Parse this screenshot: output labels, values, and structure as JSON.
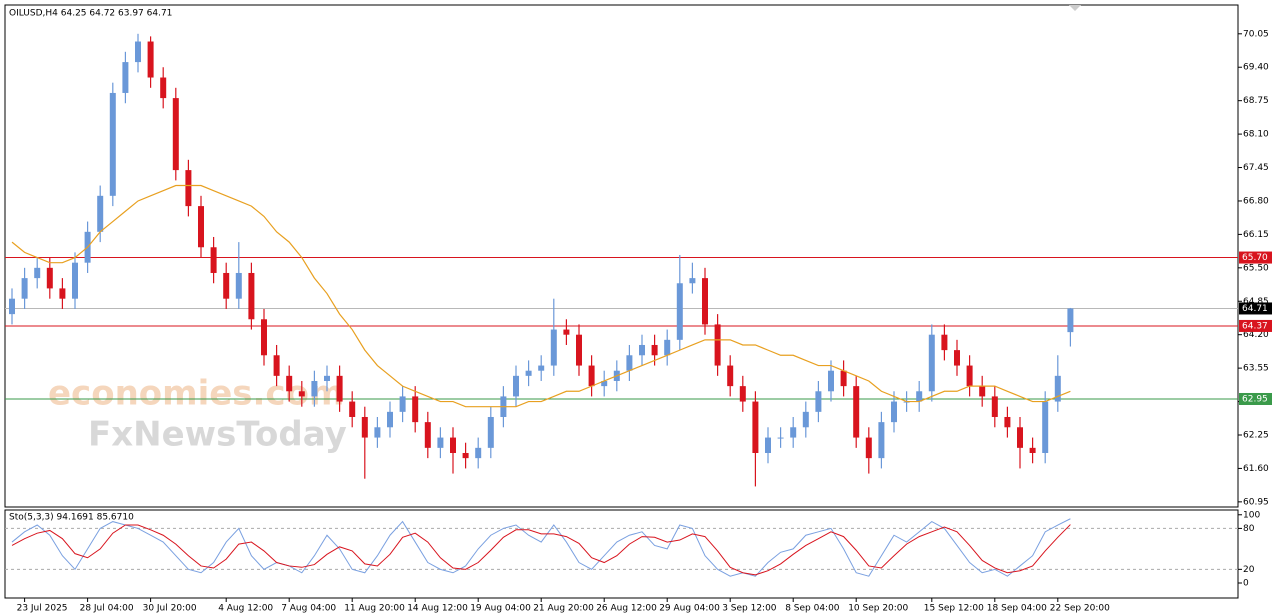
{
  "chart_data": [
    {
      "type": "candlestick",
      "title": "OILUSD,H4  64.25 64.72 63.97 64.71",
      "categories": [
        null,
        "23 Jul 2025",
        null,
        null,
        null,
        null,
        "28 Jul 04:00",
        null,
        null,
        null,
        null,
        "30 Jul 20:00",
        null,
        null,
        null,
        null,
        null,
        "4 Aug 12:00",
        null,
        null,
        null,
        null,
        "7 Aug 04:00",
        null,
        null,
        null,
        null,
        "11 Aug 20:00",
        null,
        null,
        null,
        null,
        "14 Aug 12:00",
        null,
        null,
        null,
        null,
        "19 Aug 04:00",
        null,
        null,
        null,
        null,
        "21 Aug 20:00",
        null,
        null,
        null,
        null,
        "26 Aug 12:00",
        null,
        null,
        null,
        null,
        "29 Aug 04:00",
        null,
        null,
        null,
        null,
        "3 Sep 12:00",
        null,
        null,
        null,
        null,
        "8 Sep 04:00",
        null,
        null,
        null,
        null,
        "10 Sep 20:00",
        null,
        null,
        null,
        null,
        null,
        "15 Sep 12:00",
        null,
        null,
        null,
        null,
        "18 Sep 04:00",
        null,
        null,
        null,
        null,
        "22 Sep 20:00",
        null
      ],
      "open": [
        64.6,
        64.9,
        65.3,
        65.5,
        65.1,
        64.9,
        65.6,
        66.2,
        66.9,
        68.9,
        69.5,
        69.9,
        69.2,
        68.8,
        67.4,
        66.7,
        65.9,
        65.4,
        64.9,
        65.4,
        64.5,
        63.8,
        63.4,
        63.1,
        63.0,
        63.3,
        63.4,
        62.9,
        62.6,
        62.2,
        62.4,
        62.7,
        63.0,
        62.5,
        62.0,
        62.2,
        61.9,
        61.8,
        62.0,
        62.6,
        63.0,
        63.4,
        63.5,
        63.6,
        64.3,
        64.2,
        63.6,
        63.2,
        63.3,
        63.5,
        63.8,
        64.0,
        63.8,
        64.1,
        65.2,
        65.3,
        64.4,
        63.6,
        63.2,
        62.9,
        61.9,
        62.2,
        62.2,
        62.4,
        62.7,
        63.1,
        63.5,
        63.2,
        62.2,
        61.8,
        62.5,
        62.9,
        62.9,
        63.1,
        64.2,
        63.9,
        63.6,
        63.2,
        63.0,
        62.6,
        62.4,
        62.0,
        61.9,
        62.9,
        64.25
      ],
      "high": [
        65.1,
        65.5,
        65.7,
        65.7,
        65.3,
        65.8,
        66.4,
        67.1,
        69.1,
        69.7,
        70.05,
        70.0,
        69.4,
        69.0,
        67.6,
        66.9,
        66.1,
        65.6,
        66.0,
        65.6,
        64.7,
        64.0,
        63.6,
        63.3,
        63.5,
        63.6,
        63.6,
        63.1,
        62.8,
        62.6,
        62.9,
        63.2,
        63.2,
        62.7,
        62.4,
        62.4,
        62.1,
        62.2,
        62.8,
        63.2,
        63.6,
        63.7,
        63.8,
        64.9,
        64.5,
        64.4,
        63.8,
        63.5,
        63.7,
        64.0,
        64.2,
        64.2,
        64.3,
        65.75,
        65.6,
        65.5,
        64.6,
        63.8,
        63.4,
        63.1,
        62.4,
        62.4,
        62.6,
        62.9,
        63.3,
        63.7,
        63.7,
        63.4,
        62.4,
        62.7,
        63.1,
        63.1,
        63.3,
        64.4,
        64.4,
        64.1,
        63.8,
        63.4,
        63.2,
        62.8,
        62.6,
        62.2,
        63.1,
        63.8,
        64.72
      ],
      "low": [
        64.4,
        64.7,
        65.1,
        64.9,
        64.7,
        64.7,
        65.4,
        66.0,
        66.7,
        68.7,
        69.3,
        69.0,
        68.6,
        67.2,
        66.5,
        65.7,
        65.2,
        64.7,
        64.7,
        64.3,
        63.6,
        63.2,
        62.9,
        62.8,
        62.8,
        63.1,
        62.7,
        62.4,
        61.4,
        62.0,
        62.2,
        62.5,
        62.3,
        61.8,
        61.8,
        61.5,
        61.6,
        61.6,
        61.8,
        62.4,
        62.8,
        63.2,
        63.3,
        63.4,
        64.0,
        63.4,
        63.0,
        63.0,
        63.1,
        63.3,
        63.6,
        63.6,
        63.6,
        63.9,
        65.0,
        64.2,
        63.4,
        63.0,
        62.7,
        61.25,
        61.7,
        62.0,
        62.0,
        62.2,
        62.5,
        62.9,
        63.0,
        62.0,
        61.5,
        61.6,
        62.3,
        62.7,
        62.7,
        62.9,
        63.7,
        63.4,
        63.0,
        62.8,
        62.4,
        62.2,
        61.6,
        61.7,
        61.7,
        62.7,
        63.97
      ],
      "close": [
        64.9,
        65.3,
        65.5,
        65.1,
        64.9,
        65.6,
        66.2,
        66.9,
        68.9,
        69.5,
        69.9,
        69.2,
        68.8,
        67.4,
        66.7,
        65.9,
        65.4,
        64.9,
        65.4,
        64.5,
        63.8,
        63.4,
        63.1,
        63.0,
        63.3,
        63.4,
        62.9,
        62.6,
        62.2,
        62.4,
        62.7,
        63.0,
        62.5,
        62.0,
        62.2,
        61.9,
        61.8,
        62.0,
        62.6,
        63.0,
        63.4,
        63.5,
        63.6,
        64.3,
        64.2,
        63.6,
        63.2,
        63.3,
        63.5,
        63.8,
        64.0,
        63.8,
        64.1,
        65.2,
        65.3,
        64.4,
        63.6,
        63.2,
        62.9,
        61.9,
        62.2,
        62.2,
        62.4,
        62.7,
        63.1,
        63.5,
        63.2,
        62.2,
        61.8,
        62.5,
        62.9,
        62.9,
        63.1,
        64.2,
        63.9,
        63.6,
        63.2,
        63.0,
        62.6,
        62.4,
        62.0,
        61.9,
        62.9,
        63.4,
        64.71
      ],
      "up_color": "#6a98d8",
      "down_color": "#d8141e",
      "ma_values": [
        66.0,
        65.8,
        65.7,
        65.6,
        65.6,
        65.7,
        65.9,
        66.2,
        66.4,
        66.6,
        66.8,
        66.9,
        67.0,
        67.1,
        67.1,
        67.1,
        67.0,
        66.9,
        66.8,
        66.7,
        66.5,
        66.2,
        66.0,
        65.7,
        65.3,
        65.0,
        64.6,
        64.3,
        63.9,
        63.6,
        63.4,
        63.2,
        63.1,
        63.0,
        62.9,
        62.9,
        62.8,
        62.8,
        62.8,
        62.8,
        62.8,
        62.9,
        62.9,
        63.0,
        63.1,
        63.1,
        63.2,
        63.3,
        63.4,
        63.5,
        63.6,
        63.7,
        63.8,
        63.9,
        64.0,
        64.1,
        64.1,
        64.1,
        64.0,
        64.0,
        63.9,
        63.8,
        63.8,
        63.7,
        63.6,
        63.6,
        63.5,
        63.4,
        63.3,
        63.1,
        63.0,
        62.9,
        62.9,
        63.0,
        63.1,
        63.1,
        63.2,
        63.2,
        63.2,
        63.1,
        63.0,
        62.9,
        62.9,
        63.0,
        63.1
      ],
      "ma_color": "#e8a020",
      "ylim": [
        60.85,
        70.61
      ],
      "yticks": [
        70.05,
        {
          "value": 69.4,
          "label": "69.40"
        },
        68.75,
        {
          "value": 68.1,
          "label": "68.10"
        },
        67.45,
        {
          "value": 66.8,
          "label": "66.80"
        },
        66.15,
        {
          "value": 65.5,
          "label": "65.50"
        },
        64.85,
        {
          "value": 64.2,
          "label": "64.20"
        },
        63.55,
        {
          "value": 62.9,
          "label": "62.90"
        },
        62.25,
        {
          "value": 61.6,
          "label": "61.60"
        },
        60.95
      ],
      "levels": [
        {
          "value": 65.7,
          "label": "65.70",
          "color": "#d8141e"
        },
        {
          "value": 64.71,
          "label": "64.71",
          "color": "#000000"
        },
        {
          "value": 64.37,
          "label": "64.37",
          "color": "#d8141e"
        },
        {
          "value": 62.95,
          "label": "62.95",
          "color": "#3a9a4a"
        }
      ]
    },
    {
      "type": "line",
      "title": "Sto(5,3,3) 94.1691 85.6710",
      "series": [
        {
          "color": "#7aa0e0",
          "values": [
            60,
            75,
            85,
            70,
            40,
            20,
            50,
            80,
            90,
            85,
            80,
            70,
            60,
            40,
            20,
            15,
            30,
            60,
            80,
            40,
            20,
            30,
            25,
            15,
            40,
            70,
            50,
            20,
            15,
            40,
            70,
            90,
            60,
            30,
            20,
            15,
            25,
            50,
            70,
            80,
            85,
            70,
            60,
            85,
            60,
            30,
            20,
            40,
            60,
            70,
            75,
            55,
            50,
            85,
            80,
            40,
            20,
            10,
            15,
            10,
            30,
            45,
            50,
            70,
            75,
            80,
            50,
            15,
            10,
            40,
            70,
            60,
            75,
            90,
            80,
            55,
            30,
            15,
            20,
            10,
            25,
            40,
            75,
            85,
            94.1691
          ]
        },
        {
          "color": "#d8141e",
          "values": [
            55,
            65,
            73,
            77,
            65,
            43,
            37,
            50,
            73,
            85,
            85,
            78,
            70,
            57,
            40,
            25,
            22,
            35,
            57,
            60,
            47,
            30,
            25,
            23,
            27,
            42,
            53,
            47,
            28,
            25,
            42,
            67,
            73,
            60,
            37,
            22,
            20,
            30,
            48,
            67,
            78,
            78,
            72,
            72,
            68,
            58,
            37,
            30,
            40,
            57,
            68,
            67,
            60,
            63,
            72,
            68,
            47,
            23,
            15,
            12,
            18,
            28,
            42,
            55,
            65,
            75,
            68,
            48,
            25,
            22,
            40,
            57,
            68,
            75,
            82,
            75,
            55,
            33,
            22,
            15,
            18,
            25,
            47,
            67,
            85.671
          ]
        }
      ],
      "ylim": [
        -22,
        107
      ],
      "yticks": [
        100,
        80,
        20,
        0
      ],
      "level_ticks": [
        80,
        20
      ]
    }
  ],
  "watermark": [
    "economies.com",
    "FxNewsToday"
  ]
}
